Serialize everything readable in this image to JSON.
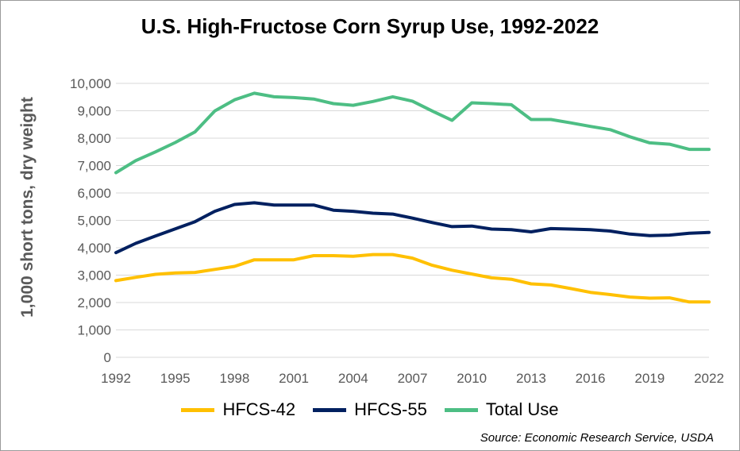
{
  "chart_data": {
    "type": "line",
    "title": "U.S. High-Fructose Corn Syrup Use, 1992-2022",
    "ylabel": "1,000 short tons, dry weight",
    "xlabel": "",
    "source": "Source: Economic Research Service, USDA",
    "x": [
      1992,
      1993,
      1994,
      1995,
      1996,
      1997,
      1998,
      1999,
      2000,
      2001,
      2002,
      2003,
      2004,
      2005,
      2006,
      2007,
      2008,
      2009,
      2010,
      2011,
      2012,
      2013,
      2014,
      2015,
      2016,
      2017,
      2018,
      2019,
      2020,
      2021,
      2022
    ],
    "x_tick_labels": [
      "1992",
      "1995",
      "1998",
      "2001",
      "2004",
      "2007",
      "2010",
      "2013",
      "2016",
      "2019",
      "2022"
    ],
    "y_tick_labels": [
      "0",
      "1,000",
      "2,000",
      "3,000",
      "4,000",
      "5,000",
      "6,000",
      "7,000",
      "8,000",
      "9,000",
      "10,000"
    ],
    "ylim": [
      0,
      10000
    ],
    "xlim": [
      1992,
      2022
    ],
    "grid": "horizontal",
    "legend_position": "bottom",
    "series": [
      {
        "name": "HFCS-42",
        "color": "#FFC000",
        "values": [
          2800,
          2920,
          3030,
          3080,
          3100,
          3210,
          3320,
          3560,
          3560,
          3560,
          3710,
          3710,
          3690,
          3750,
          3750,
          3620,
          3360,
          3180,
          3040,
          2900,
          2850,
          2680,
          2640,
          2510,
          2370,
          2290,
          2200,
          2160,
          2170,
          2020,
          2020
        ]
      },
      {
        "name": "HFCS-55",
        "color": "#002060",
        "values": [
          3820,
          4160,
          4430,
          4690,
          4950,
          5330,
          5580,
          5640,
          5560,
          5560,
          5560,
          5370,
          5330,
          5260,
          5230,
          5080,
          4920,
          4770,
          4790,
          4680,
          4660,
          4580,
          4700,
          4680,
          4660,
          4610,
          4500,
          4440,
          4460,
          4530,
          4560
        ]
      },
      {
        "name": "Total Use",
        "color": "#4DBE84",
        "values": [
          6740,
          7180,
          7500,
          7840,
          8230,
          8990,
          9400,
          9640,
          9510,
          9480,
          9430,
          9260,
          9200,
          9340,
          9510,
          9350,
          8990,
          8650,
          9290,
          9260,
          9220,
          8680,
          8680,
          8560,
          8430,
          8310,
          8050,
          7830,
          7780,
          7590,
          7590
        ]
      }
    ]
  }
}
